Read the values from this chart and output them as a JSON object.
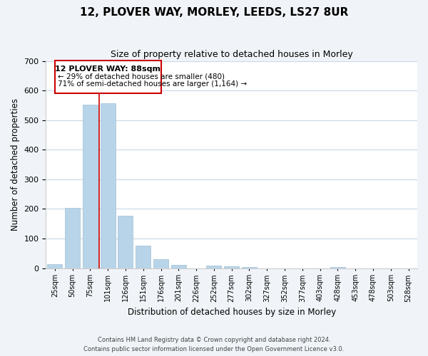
{
  "title": "12, PLOVER WAY, MORLEY, LEEDS, LS27 8UR",
  "subtitle": "Size of property relative to detached houses in Morley",
  "xlabel": "Distribution of detached houses by size in Morley",
  "ylabel": "Number of detached properties",
  "bar_labels": [
    "25sqm",
    "50sqm",
    "75sqm",
    "101sqm",
    "126sqm",
    "151sqm",
    "176sqm",
    "201sqm",
    "226sqm",
    "252sqm",
    "277sqm",
    "302sqm",
    "327sqm",
    "352sqm",
    "377sqm",
    "403sqm",
    "428sqm",
    "453sqm",
    "478sqm",
    "503sqm",
    "528sqm"
  ],
  "bar_values": [
    13,
    204,
    553,
    557,
    178,
    77,
    30,
    11,
    0,
    8,
    5,
    3,
    0,
    0,
    0,
    0,
    4,
    0,
    0,
    0,
    0
  ],
  "bar_color": "#b8d4e8",
  "bar_edge_color": "#b8d4e8",
  "grid_color": "#c8d8e8",
  "bg_color": "#f0f4f8",
  "plot_bg_color": "#ffffff",
  "ylim": [
    0,
    700
  ],
  "yticks": [
    0,
    100,
    200,
    300,
    400,
    500,
    600,
    700
  ],
  "annotation_box_edge": "#cc0000",
  "annotation_line_color": "#cc0000",
  "annotation_text_line1": "12 PLOVER WAY: 88sqm",
  "annotation_text_line2": "← 29% of detached houses are smaller (480)",
  "annotation_text_line3": "71% of semi-detached houses are larger (1,164) →",
  "footer_line1": "Contains HM Land Registry data © Crown copyright and database right 2024.",
  "footer_line2": "Contains public sector information licensed under the Open Government Licence v3.0."
}
